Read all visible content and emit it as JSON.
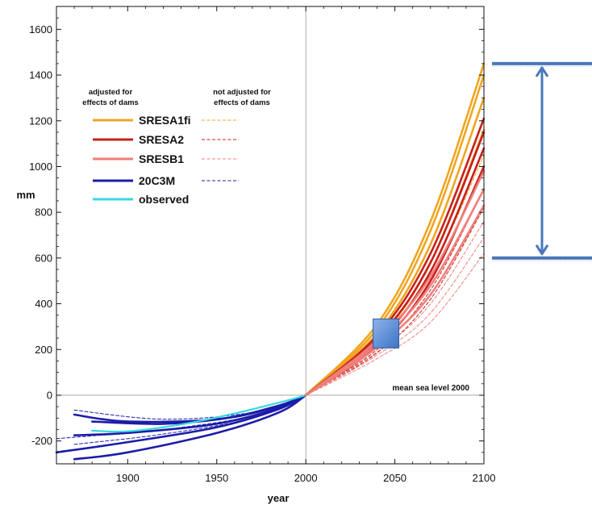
{
  "chart_data": {
    "type": "line",
    "xlabel": "year",
    "ylabel": "mm",
    "xlim": [
      1860,
      2100
    ],
    "ylim": [
      -300,
      1700
    ],
    "x_ticks": [
      "1900",
      "1950",
      "2000",
      "2050",
      "2100"
    ],
    "x_tick_values": [
      1900,
      1950,
      2000,
      2050,
      2100
    ],
    "y_ticks": [
      "-200",
      "0",
      "200",
      "400",
      "600",
      "800",
      "1000",
      "1200",
      "1400",
      "1600"
    ],
    "y_tick_values": [
      -200,
      0,
      200,
      400,
      600,
      800,
      1000,
      1200,
      1400,
      1600
    ],
    "reference_lines": {
      "x": 2000,
      "y": 0
    },
    "annotation": "mean sea level 2000",
    "legend": {
      "placement": "upper-left",
      "adjusted_header": [
        "adjusted for",
        "effects of dams"
      ],
      "not_adjusted_header": [
        "not adjusted for",
        "effects of dams"
      ],
      "entries": [
        {
          "label": "SRESA1fi",
          "color": "#f0a520",
          "has_unadjusted": true
        },
        {
          "label": "SRESA2",
          "color": "#c8201a",
          "has_unadjusted": true
        },
        {
          "label": "SRESB1",
          "color": "#ef7f7b",
          "has_unadjusted": true
        },
        {
          "label": "20C3M",
          "color": "#1c1ca8",
          "has_unadjusted": true
        },
        {
          "label": "observed",
          "color": "#38d8e0",
          "has_unadjusted": false
        }
      ]
    },
    "series": [
      {
        "group": "20C3M",
        "style": "solid",
        "color": "#1c1ca8",
        "x": [
          1870,
          1900,
          1950,
          1985,
          2000
        ],
        "y": [
          -85,
          -115,
          -105,
          -45,
          0
        ]
      },
      {
        "group": "20C3M",
        "style": "solid",
        "color": "#1c1ca8",
        "x": [
          1870,
          1900,
          1950,
          1985,
          2000
        ],
        "y": [
          -280,
          -250,
          -165,
          -75,
          0
        ]
      },
      {
        "group": "20C3M",
        "style": "solid",
        "color": "#1c1ca8",
        "x": [
          1860,
          1900,
          1950,
          1985,
          2000
        ],
        "y": [
          -250,
          -205,
          -140,
          -60,
          0
        ]
      },
      {
        "group": "20C3M",
        "style": "solid",
        "color": "#1c1ca8",
        "x": [
          1880,
          1920,
          1960,
          1990,
          2000
        ],
        "y": [
          -115,
          -125,
          -95,
          -35,
          0
        ]
      },
      {
        "group": "20C3M",
        "style": "solid",
        "color": "#1c1ca8",
        "x": [
          1870,
          1900,
          1950,
          1985,
          2000
        ],
        "y": [
          -175,
          -165,
          -125,
          -55,
          0
        ]
      },
      {
        "group": "20C3M",
        "style": "dashed",
        "color": "#1c1ca8",
        "x": [
          1870,
          1920,
          1970,
          2000
        ],
        "y": [
          -65,
          -105,
          -75,
          0
        ]
      },
      {
        "group": "20C3M",
        "style": "dashed",
        "color": "#1c1ca8",
        "x": [
          1870,
          1920,
          1970,
          2000
        ],
        "y": [
          -215,
          -170,
          -100,
          0
        ]
      },
      {
        "group": "20C3M",
        "style": "dashed",
        "color": "#1c1ca8",
        "x": [
          1860,
          1920,
          1970,
          2000
        ],
        "y": [
          -190,
          -150,
          -90,
          0
        ]
      },
      {
        "group": "observed",
        "style": "solid",
        "color": "#38d8e0",
        "x": [
          1880,
          1900,
          1930,
          1960,
          1990,
          2000
        ],
        "y": [
          -155,
          -158,
          -128,
          -80,
          -22,
          0
        ]
      },
      {
        "group": "SRESA1fi",
        "style": "solid",
        "color": "#f0a520",
        "x": [
          2000,
          2040,
          2070,
          2100
        ],
        "y": [
          0,
          310,
          760,
          1450
        ]
      },
      {
        "group": "SRESA1fi",
        "style": "solid",
        "color": "#f0a520",
        "x": [
          2000,
          2040,
          2070,
          2100
        ],
        "y": [
          0,
          290,
          720,
          1400
        ]
      },
      {
        "group": "SRESA1fi",
        "style": "solid",
        "color": "#f0a520",
        "x": [
          2000,
          2040,
          2070,
          2100
        ],
        "y": [
          0,
          270,
          660,
          1300
        ]
      },
      {
        "group": "SRESA1fi",
        "style": "solid",
        "color": "#f0a520",
        "x": [
          2000,
          2040,
          2070,
          2100
        ],
        "y": [
          0,
          240,
          580,
          1160
        ]
      },
      {
        "group": "SRESA1fi",
        "style": "dashed",
        "color": "#f0a520",
        "x": [
          2000,
          2040,
          2070,
          2100
        ],
        "y": [
          0,
          230,
          540,
          1050
        ]
      },
      {
        "group": "SRESA2",
        "style": "solid",
        "color": "#c8201a",
        "x": [
          2000,
          2040,
          2070,
          2100
        ],
        "y": [
          0,
          260,
          620,
          1210
        ]
      },
      {
        "group": "SRESA2",
        "style": "solid",
        "color": "#c8201a",
        "x": [
          2000,
          2040,
          2070,
          2100
        ],
        "y": [
          0,
          245,
          580,
          1150
        ]
      },
      {
        "group": "SRESA2",
        "style": "solid",
        "color": "#c8201a",
        "x": [
          2000,
          2040,
          2070,
          2100
        ],
        "y": [
          0,
          230,
          540,
          1080
        ]
      },
      {
        "group": "SRESA2",
        "style": "solid",
        "color": "#c8201a",
        "x": [
          2000,
          2040,
          2070,
          2100
        ],
        "y": [
          0,
          215,
          500,
          1000
        ]
      },
      {
        "group": "SRESA2",
        "style": "dashed",
        "color": "#c8201a",
        "x": [
          2000,
          2040,
          2070,
          2100
        ],
        "y": [
          0,
          200,
          460,
          900
        ]
      },
      {
        "group": "SRESA2",
        "style": "dashed",
        "color": "#c8201a",
        "x": [
          2000,
          2040,
          2070,
          2100
        ],
        "y": [
          0,
          185,
          420,
          820
        ]
      },
      {
        "group": "SRESB1",
        "style": "solid",
        "color": "#ef7f7b",
        "x": [
          2000,
          2040,
          2070,
          2100
        ],
        "y": [
          0,
          240,
          520,
          980
        ]
      },
      {
        "group": "SRESB1",
        "style": "solid",
        "color": "#ef7f7b",
        "x": [
          2000,
          2040,
          2070,
          2100
        ],
        "y": [
          0,
          225,
          480,
          900
        ]
      },
      {
        "group": "SRESB1",
        "style": "solid",
        "color": "#ef7f7b",
        "x": [
          2000,
          2040,
          2070,
          2100
        ],
        "y": [
          0,
          210,
          440,
          830
        ]
      },
      {
        "group": "SRESB1",
        "style": "dashed",
        "color": "#ef7f7b",
        "x": [
          2000,
          2040,
          2070,
          2100
        ],
        "y": [
          0,
          190,
          400,
          760
        ]
      },
      {
        "group": "SRESB1",
        "style": "dashed",
        "color": "#ef7f7b",
        "x": [
          2000,
          2040,
          2070,
          2100
        ],
        "y": [
          0,
          175,
          360,
          690
        ]
      },
      {
        "group": "SRESB1",
        "style": "dashed",
        "color": "#ef7f7b",
        "x": [
          2000,
          2040,
          2070,
          2100
        ],
        "y": [
          0,
          160,
          320,
          620
        ]
      }
    ],
    "range_marker": {
      "upper_value": 1450,
      "lower_value": 600,
      "color": "#4a77bb"
    },
    "marker_square": {
      "x": 2045,
      "y": 270,
      "color": "#5b8fd6"
    }
  }
}
